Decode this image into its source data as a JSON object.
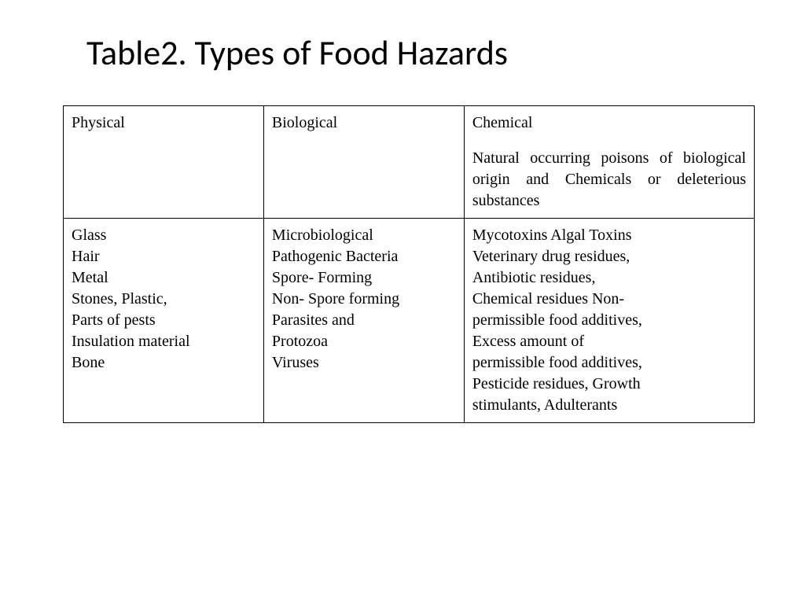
{
  "title": "Table2. Types of Food Hazards",
  "table": {
    "type": "table",
    "border_color": "#000000",
    "border_width": 1.5,
    "background_color": "#ffffff",
    "columns": [
      {
        "key": "physical",
        "width_pct": 29
      },
      {
        "key": "biological",
        "width_pct": 29
      },
      {
        "key": "chemical",
        "width_pct": 42
      }
    ],
    "header_row": {
      "physical": {
        "label": "Physical",
        "desc": ""
      },
      "biological": {
        "label": "Biological",
        "desc": ""
      },
      "chemical": {
        "label": "Chemical",
        "desc": "Natural occurring poisons of biological origin and Chemicals or deleterious substances"
      }
    },
    "body_row": {
      "physical": "Glass\nHair\nMetal\nStones, Plastic,\nParts of pests\nInsulation material\nBone",
      "biological": "Microbiological\nPathogenic Bacteria\nSpore- Forming\nNon- Spore forming\nParasites and\nProtozoa\nViruses",
      "chemical": "Mycotoxins Algal Toxins\nVeterinary drug residues,\nAntibiotic residues,\nChemical residues Non-\npermissible food additives,\nExcess amount of\npermissible food additives,\nPesticide residues, Growth\nstimulants, Adulterants"
    },
    "title_fontsize": 44,
    "cell_fontsize": 20,
    "cell_font_family": "Times New Roman"
  }
}
